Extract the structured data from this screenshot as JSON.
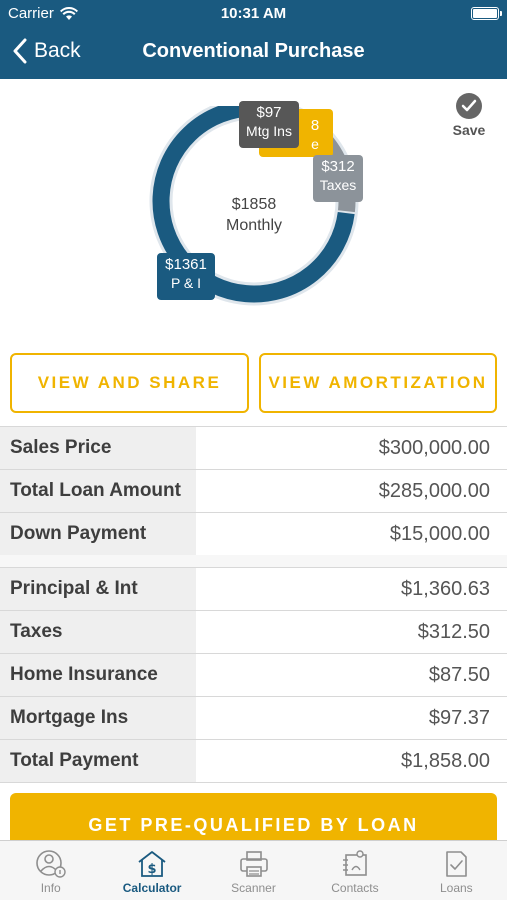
{
  "status": {
    "carrier": "Carrier",
    "time": "10:31 AM"
  },
  "nav": {
    "back_label": "Back",
    "title": "Conventional Purchase"
  },
  "chart_data": {
    "type": "pie",
    "categories": [
      "P & I",
      "Taxes",
      "Home Ins",
      "Mtg Ins"
    ],
    "values": [
      1361,
      312,
      88,
      97
    ],
    "center": {
      "amount": "$1858",
      "label": "Monthly"
    },
    "colors": [
      "#1a5a80",
      "#8c939a",
      "#f0b400",
      "#575757"
    ],
    "labels": {
      "home_ins": {
        "amount": "8",
        "name": "e Ins"
      },
      "mtg_ins": {
        "amount": "$97",
        "name": "Mtg Ins"
      },
      "taxes": {
        "amount": "$312",
        "name": "Taxes"
      },
      "pi": {
        "amount": "$1361",
        "name": "P & I"
      }
    }
  },
  "save_label": "Save",
  "buttons": {
    "view_share": "VIEW AND SHARE",
    "view_amortization": "VIEW AMORTIZATION"
  },
  "loan_rows": [
    {
      "label": "Sales Price",
      "value": "$300,000.00"
    },
    {
      "label": "Total Loan Amount",
      "value": "$285,000.00"
    },
    {
      "label": "Down Payment",
      "value": "$15,000.00"
    }
  ],
  "payment_rows": [
    {
      "label": "Principal & Int",
      "value": "$1,360.63"
    },
    {
      "label": "Taxes",
      "value": "$312.50"
    },
    {
      "label": "Home Insurance",
      "value": "$87.50"
    },
    {
      "label": "Mortgage Ins",
      "value": "$97.37"
    },
    {
      "label": "Total Payment",
      "value": "$1,858.00"
    }
  ],
  "cta_label": "GET PRE-QUALIFIED BY LOAN",
  "tabs": [
    {
      "label": "Info",
      "icon": "info-person-icon"
    },
    {
      "label": "Calculator",
      "icon": "calculator-house-icon",
      "active": true
    },
    {
      "label": "Scanner",
      "icon": "scanner-icon"
    },
    {
      "label": "Contacts",
      "icon": "contacts-icon"
    },
    {
      "label": "Loans",
      "icon": "loans-document-icon"
    }
  ]
}
